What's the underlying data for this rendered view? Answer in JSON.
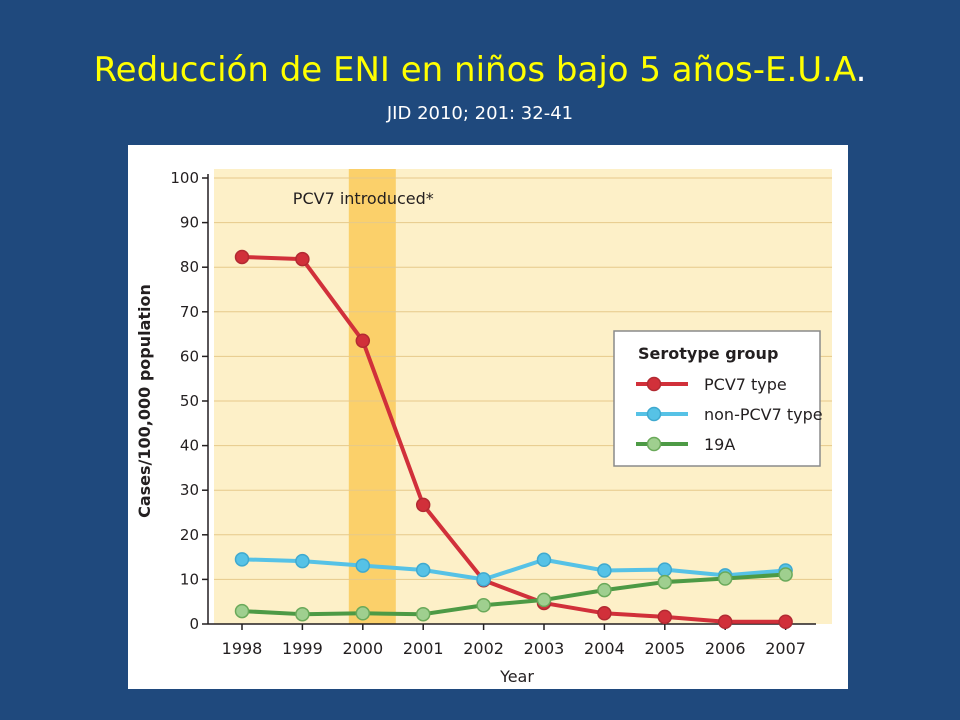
{
  "slide": {
    "title": "Reducción de ENI en niños bajo 5 años-E.U.A",
    "title_end": ".",
    "subtitle": "JID 2010; 201: 32-41"
  },
  "colors": {
    "background": "#1f497d",
    "title": "#ffff00",
    "plot_background": "#fdf0c8",
    "highlight_band": "#fbd06a",
    "pcv7": "#d1303a",
    "non_pcv7": "#56c2e6",
    "s19a": "#4d9a45"
  },
  "chart_data": {
    "type": "line",
    "title": "",
    "xlabel": "Year",
    "ylabel": "Cases/100,000 population",
    "x": [
      "1998",
      "1999",
      "2000",
      "2001",
      "2002",
      "2003",
      "2004",
      "2005",
      "2006",
      "2007"
    ],
    "ylim": [
      0,
      100
    ],
    "yticks": [
      0,
      10,
      20,
      30,
      40,
      50,
      60,
      70,
      80,
      90,
      100
    ],
    "grid": true,
    "annotation": {
      "text": "PCV7 introduced*",
      "band_year": "2000"
    },
    "legend": {
      "title": "Serotype group",
      "position": "right"
    },
    "series": [
      {
        "name": "PCV7 type",
        "values": [
          82.3,
          81.8,
          63.5,
          26.7,
          9.8,
          4.7,
          2.4,
          1.6,
          0.5,
          0.5
        ]
      },
      {
        "name": "non-PCV7 type",
        "values": [
          14.5,
          14.1,
          13.1,
          12.1,
          10.0,
          14.4,
          12.0,
          12.2,
          10.9,
          12.0
        ]
      },
      {
        "name": "19A",
        "values": [
          2.9,
          2.2,
          2.4,
          2.2,
          4.2,
          5.4,
          7.6,
          9.4,
          10.2,
          11.1
        ]
      }
    ]
  }
}
